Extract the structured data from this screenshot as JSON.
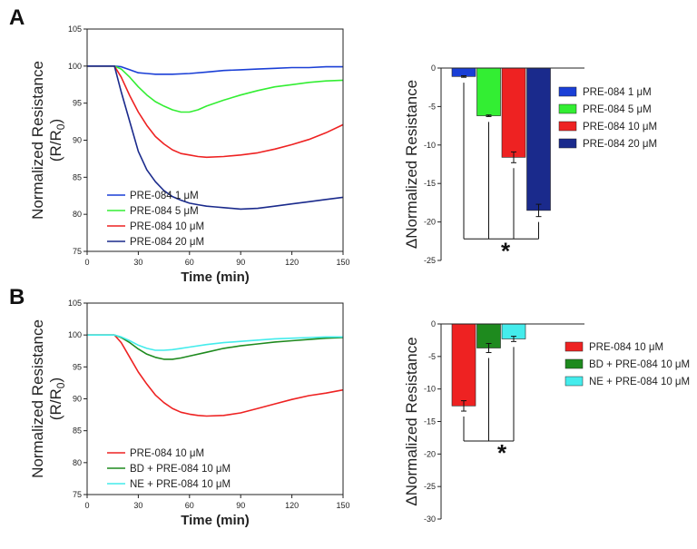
{
  "panel_labels": [
    "A",
    "B"
  ],
  "significance_marker": "*",
  "chart_data": [
    {
      "id": "A-line",
      "type": "line",
      "xlabel": "Time (min)",
      "ylabel_main": "Normalized Resistance",
      "ylabel_sub_prefix": "(R/R",
      "ylabel_sub_index": "0",
      "ylabel_sub_suffix": ")",
      "xlim": [
        0,
        150
      ],
      "ylim": [
        75,
        105
      ],
      "xticks": [
        0,
        30,
        60,
        90,
        120,
        150
      ],
      "yticks": [
        75,
        80,
        85,
        90,
        95,
        100,
        105
      ],
      "legend_position": "bottom-left",
      "series": [
        {
          "name": "PRE-084 1 μM",
          "color": "#1a3fd6",
          "x": [
            0,
            10,
            16,
            20,
            25,
            30,
            35,
            40,
            50,
            60,
            70,
            80,
            90,
            100,
            110,
            120,
            130,
            140,
            150
          ],
          "y": [
            100,
            100,
            100,
            99.9,
            99.5,
            99.1,
            99,
            98.9,
            98.9,
            99,
            99.2,
            99.4,
            99.5,
            99.6,
            99.7,
            99.8,
            99.8,
            99.9,
            99.9
          ]
        },
        {
          "name": "PRE-084 5 μM",
          "color": "#33ee33",
          "x": [
            0,
            10,
            16,
            20,
            25,
            30,
            35,
            40,
            45,
            50,
            55,
            60,
            65,
            70,
            80,
            90,
            100,
            110,
            120,
            130,
            140,
            150
          ],
          "y": [
            100,
            100,
            100,
            99.6,
            98.5,
            97.2,
            96.1,
            95.2,
            94.6,
            94.1,
            93.8,
            93.8,
            94.1,
            94.6,
            95.4,
            96.1,
            96.7,
            97.2,
            97.5,
            97.8,
            98,
            98.1
          ]
        },
        {
          "name": "PRE-084 10 μM",
          "color": "#ee2222",
          "x": [
            0,
            10,
            16,
            20,
            25,
            30,
            35,
            40,
            45,
            50,
            55,
            60,
            65,
            70,
            80,
            90,
            100,
            110,
            120,
            130,
            140,
            150
          ],
          "y": [
            100,
            100,
            100,
            98.5,
            96,
            93.8,
            92,
            90.5,
            89.5,
            88.7,
            88.2,
            88,
            87.8,
            87.7,
            87.8,
            88,
            88.3,
            88.8,
            89.4,
            90.1,
            91,
            92.1
          ]
        },
        {
          "name": "PRE-084 20 μM",
          "color": "#1a2a8c",
          "x": [
            0,
            10,
            16,
            20,
            25,
            30,
            35,
            40,
            45,
            50,
            55,
            60,
            65,
            70,
            75,
            80,
            90,
            100,
            110,
            120,
            130,
            140,
            150
          ],
          "y": [
            100,
            100,
            100,
            96.5,
            92.5,
            88.5,
            86,
            84.4,
            83.2,
            82.4,
            81.9,
            81.5,
            81.3,
            81.1,
            81,
            80.9,
            80.7,
            80.8,
            81.1,
            81.4,
            81.7,
            82,
            82.3
          ]
        }
      ]
    },
    {
      "id": "A-bar",
      "type": "bar",
      "ylabel": "ΔNormalized Resistance",
      "ylim": [
        -25,
        0
      ],
      "yticks": [
        0,
        -5,
        -10,
        -15,
        -20,
        -25
      ],
      "legend_position": "top-right",
      "series": [
        {
          "name": "PRE-084 1 μM",
          "color": "#1a3fd6",
          "value": -1.1,
          "error": 0.1
        },
        {
          "name": "PRE-084 5 μM",
          "color": "#33ee33",
          "value": -6.2,
          "error": 0.1
        },
        {
          "name": "PRE-084 10 μM",
          "color": "#ee2222",
          "value": -11.6,
          "error": 0.7
        },
        {
          "name": "PRE-084 20 μM",
          "color": "#1a2a8c",
          "value": -18.5,
          "error": 0.8
        }
      ],
      "significance": {
        "label": "*",
        "level": -22.2
      }
    },
    {
      "id": "B-line",
      "type": "line",
      "xlabel": "Time (min)",
      "ylabel_main": "Normalized Resistance",
      "ylabel_sub_prefix": "(R/R",
      "ylabel_sub_index": "0",
      "ylabel_sub_suffix": ")",
      "xlim": [
        0,
        150
      ],
      "ylim": [
        75,
        105
      ],
      "xticks": [
        0,
        30,
        60,
        90,
        120,
        150
      ],
      "yticks": [
        75,
        80,
        85,
        90,
        95,
        100,
        105
      ],
      "legend_position": "bottom-left",
      "series": [
        {
          "name": "PRE-084 10 μM",
          "color": "#ee2222",
          "x": [
            0,
            10,
            16,
            20,
            25,
            30,
            35,
            40,
            45,
            50,
            55,
            60,
            65,
            70,
            80,
            90,
            100,
            110,
            120,
            130,
            140,
            150
          ],
          "y": [
            100,
            100,
            100,
            98.8,
            96.5,
            94.2,
            92.3,
            90.6,
            89.4,
            88.5,
            87.9,
            87.6,
            87.4,
            87.3,
            87.4,
            87.8,
            88.5,
            89.2,
            89.9,
            90.5,
            90.9,
            91.4
          ]
        },
        {
          "name": "BD + PRE-084 10 μM",
          "color": "#1e8a1e",
          "x": [
            0,
            10,
            16,
            20,
            25,
            30,
            35,
            40,
            45,
            50,
            55,
            60,
            70,
            80,
            90,
            100,
            110,
            120,
            130,
            140,
            150
          ],
          "y": [
            100,
            100,
            100,
            99.6,
            98.8,
            97.8,
            97,
            96.5,
            96.2,
            96.2,
            96.4,
            96.7,
            97.3,
            97.9,
            98.3,
            98.6,
            98.9,
            99.1,
            99.3,
            99.5,
            99.6
          ]
        },
        {
          "name": "NE + PRE-084 10 μM",
          "color": "#44ecec",
          "x": [
            0,
            10,
            16,
            20,
            25,
            30,
            35,
            40,
            45,
            50,
            55,
            60,
            70,
            80,
            90,
            100,
            110,
            120,
            130,
            140,
            150
          ],
          "y": [
            100,
            100,
            100,
            99.7,
            99.1,
            98.4,
            97.9,
            97.6,
            97.6,
            97.7,
            97.9,
            98.1,
            98.5,
            98.8,
            99,
            99.2,
            99.4,
            99.5,
            99.6,
            99.7,
            99.7
          ]
        }
      ]
    },
    {
      "id": "B-bar",
      "type": "bar",
      "ylabel": "ΔNormalized Resistance",
      "ylim": [
        -30,
        0
      ],
      "yticks": [
        0,
        -5,
        -10,
        -15,
        -20,
        -25,
        -30
      ],
      "legend_position": "top-right",
      "series": [
        {
          "name": "PRE-084 10 μM",
          "color": "#ee2222",
          "value": -12.6,
          "error": 0.8
        },
        {
          "name": "BD + PRE-084 10 μM",
          "color": "#1e8a1e",
          "value": -3.7,
          "error": 0.7
        },
        {
          "name": "NE + PRE-084 10 μM",
          "color": "#44ecec",
          "value": -2.3,
          "error": 0.4
        }
      ],
      "significance": {
        "label": "*",
        "level": -18.0
      }
    }
  ]
}
